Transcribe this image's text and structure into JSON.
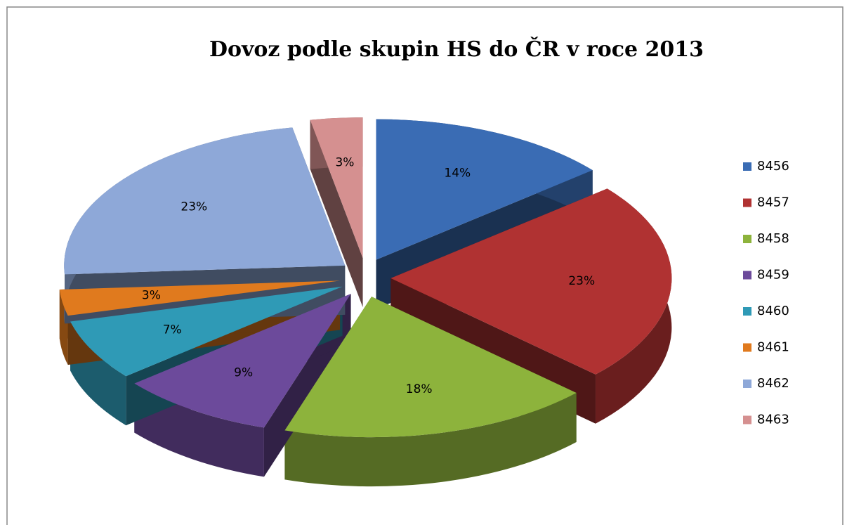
{
  "chart_data": {
    "type": "pie3d",
    "title": "Dovoz podle skupin HS do ČR v roce 2013",
    "categories": [
      "8456",
      "8457",
      "8458",
      "8459",
      "8460",
      "8461",
      "8462",
      "8463"
    ],
    "values": [
      14,
      23,
      18,
      9,
      7,
      3,
      23,
      3
    ],
    "value_labels": [
      "14%",
      "23%",
      "18%",
      "9%",
      "7%",
      "3%",
      "23%",
      "3%"
    ],
    "colors": [
      "#3a6cb4",
      "#b03232",
      "#8db33c",
      "#6c4a9b",
      "#2f9ab6",
      "#e07a1e",
      "#8ea8d8",
      "#d59090"
    ],
    "legend": "right"
  }
}
